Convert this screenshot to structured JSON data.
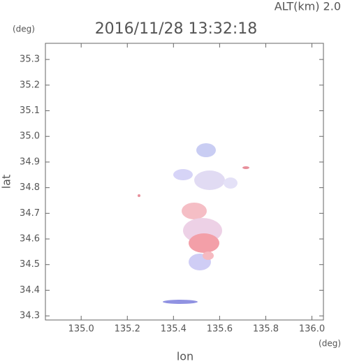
{
  "chart_data": {
    "type": "scatter",
    "title": "2016/11/28 13:32:18",
    "subtitle": "ALT(km) 2.0",
    "xlabel": "lon",
    "xunit": "(deg)",
    "ylabel": "lat",
    "yunit": "(deg)",
    "xlim": [
      134.845,
      136.05
    ],
    "ylim": [
      34.284,
      35.363
    ],
    "xticks": [
      {
        "value": 135,
        "label": "135.0"
      },
      135.2,
      135.4,
      135.6,
      135.8,
      {
        "value": 136,
        "label": "136.0"
      }
    ],
    "yticks": [
      34.3,
      34.4,
      34.5,
      34.6,
      34.7,
      34.8,
      34.9,
      {
        "value": 35,
        "label": "35.0"
      },
      35.1,
      35.2,
      35.3
    ],
    "grid": false
  }
}
